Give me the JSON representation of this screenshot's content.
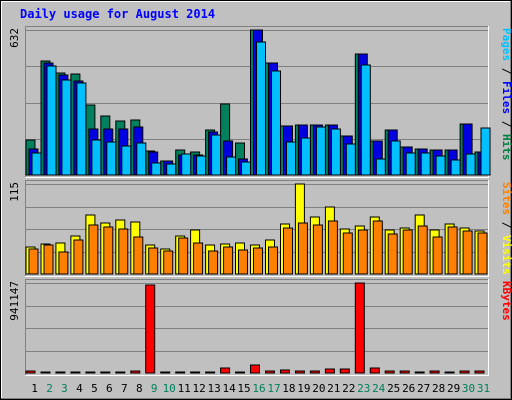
{
  "chart_data": {
    "type": "bar",
    "title": "Daily usage for August 2014",
    "categories": [
      "1",
      "2",
      "3",
      "4",
      "5",
      "6",
      "7",
      "8",
      "9",
      "10",
      "11",
      "12",
      "13",
      "14",
      "15",
      "16",
      "17",
      "18",
      "19",
      "20",
      "21",
      "22",
      "23",
      "24",
      "25",
      "26",
      "27",
      "28",
      "29",
      "30",
      "31"
    ],
    "weekend_days": [
      "2",
      "3",
      "9",
      "10",
      "16",
      "17",
      "23",
      "24",
      "30",
      "31"
    ],
    "panels": [
      {
        "id": "hits-panel",
        "max_label": "632",
        "ymax": 632,
        "legend": [
          {
            "text": "Pages",
            "color": "#00c0ff"
          },
          {
            "text": " / ",
            "color": "#000000"
          },
          {
            "text": "Files",
            "color": "#0000ff"
          },
          {
            "text": " / ",
            "color": "#000000"
          },
          {
            "text": "Hits",
            "color": "#008040"
          }
        ],
        "series": [
          {
            "name": "Hits",
            "color": "#00805c",
            "values": [
              152,
              497,
              443,
              439,
              305,
              256,
              237,
              241,
              103,
              60,
              109,
              101,
              198,
              309,
              139,
              632,
              490,
              214,
              219,
              217,
              216,
              168,
              529,
              149,
              197,
              122,
              115,
              111,
              109,
              223,
              99
            ]
          },
          {
            "name": "Files",
            "color": "#0000e0",
            "values": [
              115,
              486,
              434,
              409,
              201,
              202,
              200,
              208,
              101,
              60,
              89,
              89,
              186,
              150,
              69,
              632,
              486,
              214,
              219,
              217,
              216,
              168,
              529,
              149,
              197,
              122,
              115,
              111,
              109,
              223,
              99
            ]
          },
          {
            "name": "Pages",
            "color": "#00c0ff",
            "values": [
              96,
              476,
              413,
              399,
              154,
              143,
              128,
              141,
              53,
              48,
              91,
              82,
              175,
              79,
              58,
              581,
              454,
              145,
              162,
              208,
              201,
              135,
              481,
              70,
              150,
              98,
              94,
              83,
              66,
              91,
              205
            ]
          }
        ]
      },
      {
        "id": "visits-panel",
        "max_label": "115",
        "ymax": 115,
        "legend": [
          {
            "text": "Sites",
            "color": "#ff8000"
          },
          {
            "text": " / ",
            "color": "#000000"
          },
          {
            "text": "Visits",
            "color": "#ffff00"
          }
        ],
        "series": [
          {
            "name": "Visits",
            "color": "#ffff00",
            "values": [
              34,
              38,
              39,
              48,
              75,
              65,
              69,
              67,
              37,
              32,
              48,
              56,
              37,
              38,
              39,
              37,
              43,
              64,
              115,
              73,
              86,
              58,
              61,
              73,
              56,
              59,
              76,
              56,
              64,
              59,
              55
            ]
          },
          {
            "name": "Sites",
            "color": "#ff8000",
            "values": [
              32,
              37,
              28,
              44,
              62,
              60,
              57,
              47,
              33,
              29,
              46,
              39,
              29,
              35,
              31,
              33,
              35,
              59,
              65,
              63,
              68,
              52,
              56,
              68,
              51,
              56,
              61,
              47,
              60,
              55,
              52
            ]
          }
        ]
      },
      {
        "id": "kbytes-panel",
        "max_label": "941147",
        "ymax": 941147,
        "legend": [
          {
            "text": "KBytes",
            "color": "#ff0000"
          }
        ],
        "series": [
          {
            "name": "KBytes",
            "color": "#ff0000",
            "values": [
              18000,
              12000,
              14000,
              14000,
              14000,
              14000,
              13000,
              17000,
              920000,
              10000,
              10000,
              11000,
              15000,
              50000,
              14000,
              80000,
              26000,
              29000,
              23000,
              26000,
              39000,
              37000,
              941147,
              55000,
              19000,
              18000,
              12000,
              18000,
              11000,
              16000,
              21000
            ]
          }
        ]
      }
    ]
  }
}
